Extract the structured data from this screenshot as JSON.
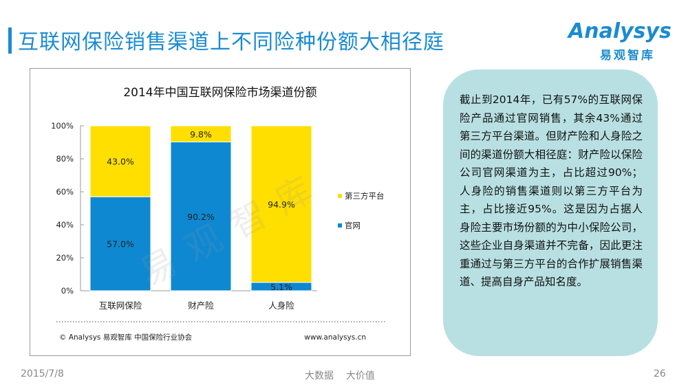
{
  "slide": {
    "title": "互联网保险销售渠道上不同险种份额大相径庭",
    "logo_word": "Analysys",
    "logo_cn": "易观智库",
    "note": "截止到2014年，已有57%的互联网保险产品通过官网销售，其余43%通过第三方平台渠道。但财产险和人身险之间的渠道份额大相径庭：财产险以保险公司官网渠道为主，占比超过90%；人身险的销售渠道则以第三方平台为主，占比接近95%。这是因为占据人身险主要市场份额的为中小保险公司，这些企业自身渠道并不完备，因此更注重通过与第三方平台的合作扩展销售渠道、提高自身产品知名度。",
    "source_left": "© Analysys 易观智库 中国保险行业协会",
    "source_right": "www.analysys.cn",
    "watermark": "易观智库",
    "footer_date": "2015/7/8",
    "footer_slogan": "大数据    大价值",
    "page_number": "26"
  },
  "colors": {
    "accent": "#1b8bd0",
    "official": "#0f88d2",
    "third_party": "#ffdf00",
    "note_bg": "#b8e0e2"
  },
  "chart_data": {
    "type": "bar",
    "stacked": true,
    "title": "2014年中国互联网保险市场渠道份额",
    "categories": [
      "互联网保险",
      "财产险",
      "人身险"
    ],
    "series": [
      {
        "name": "官网",
        "values": [
          57.0,
          90.2,
          5.1
        ],
        "labels": [
          "57.0%",
          "90.2%",
          "5.1%"
        ],
        "color": "#0f88d2"
      },
      {
        "name": "第三方平台",
        "values": [
          43.0,
          9.8,
          94.9
        ],
        "labels": [
          "43.0%",
          "9.8%",
          "94.9%"
        ],
        "color": "#ffdf00"
      }
    ],
    "yticks": [
      "0%",
      "20%",
      "40%",
      "60%",
      "80%",
      "100%"
    ],
    "ylim": [
      0,
      100
    ],
    "legend": [
      "第三方平台",
      "官网"
    ],
    "legend_position": "right",
    "grid": false
  }
}
